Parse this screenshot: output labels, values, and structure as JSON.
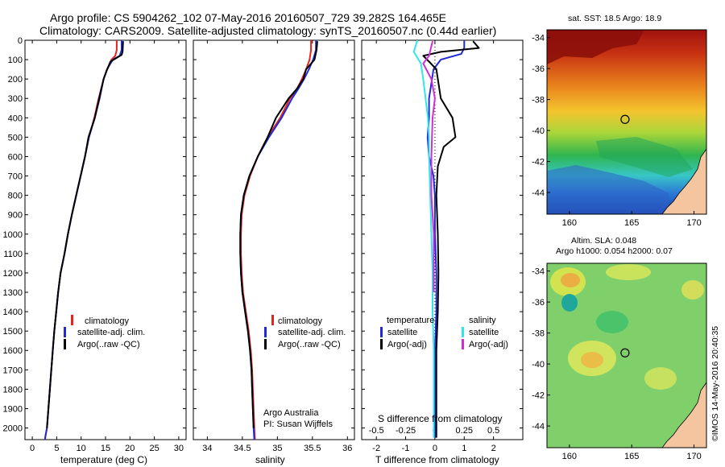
{
  "title": {
    "line1": "Argo profile: CS 5904262_102 07-May-2016 20160507_729 39.282S 164.465E",
    "line2": "Climatology: CARS2009. Satellite-adjusted climatology: synTS_20160507.nc (0.44d earlier)"
  },
  "colors": {
    "climatology": "#e8221d",
    "satellite": "#1f2bd6",
    "argo": "#000000",
    "salinity_satellite": "#2fe6ec",
    "salinity_argo": "#d52bd6"
  },
  "chart_data": [
    {
      "type": "line",
      "panel": "temperature",
      "xlabel": "temperature (deg C)",
      "ylabel": "",
      "xlim": [
        -1.5,
        31.5
      ],
      "ylim": [
        2060,
        0
      ],
      "xticks": [
        0,
        5,
        10,
        15,
        20,
        25,
        30
      ],
      "yticks": [
        0,
        100,
        200,
        300,
        400,
        500,
        600,
        700,
        800,
        900,
        1000,
        1100,
        1200,
        1300,
        1400,
        1500,
        1600,
        1700,
        1800,
        1900,
        2000
      ],
      "legend": [
        "climatology",
        "satellite-adj. clim.",
        "Argo(..raw -QC)"
      ],
      "series": [
        {
          "name": "climatology",
          "color_key": "climatology",
          "x": [
            17.3,
            17.3,
            17.0,
            16.2,
            15.3,
            14.6,
            13.6,
            12.7,
            11.6,
            10.8,
            9.9,
            9.0,
            8.1,
            7.3,
            6.6,
            5.8,
            5.3,
            4.9,
            4.5,
            4.2,
            3.9,
            3.6,
            3.3,
            3.0,
            2.7,
            2.6
          ],
          "y": [
            0,
            50,
            80,
            100,
            150,
            200,
            300,
            400,
            500,
            600,
            700,
            800,
            900,
            1000,
            1100,
            1200,
            1300,
            1400,
            1500,
            1600,
            1700,
            1800,
            1900,
            2000,
            2040,
            2060
          ]
        },
        {
          "name": "satellite-adj. clim.",
          "color_key": "satellite",
          "x": [
            18.3,
            18.3,
            17.9,
            16.5,
            15.3,
            14.6,
            13.8,
            12.8,
            11.6,
            10.8,
            9.9,
            9.0,
            8.1,
            7.3,
            6.6,
            5.8,
            5.3,
            4.9,
            4.5,
            4.2,
            3.9,
            3.6,
            3.3,
            3.0,
            2.7,
            2.6
          ],
          "y": [
            0,
            50,
            80,
            100,
            150,
            200,
            300,
            400,
            500,
            600,
            700,
            800,
            900,
            1000,
            1100,
            1200,
            1300,
            1400,
            1500,
            1600,
            1700,
            1800,
            1900,
            2000,
            2040,
            2060
          ]
        },
        {
          "name": "Argo(..raw -QC)",
          "color_key": "argo",
          "x": [
            18.6,
            18.5,
            18.3,
            16.0,
            15.2,
            14.6,
            13.7,
            12.8,
            11.5,
            10.8,
            9.9,
            9.0,
            8.1,
            7.3,
            6.6,
            5.8,
            5.3,
            4.9,
            4.5,
            4.2,
            3.9,
            3.6,
            3.3,
            3.0
          ],
          "y": [
            5,
            60,
            75,
            110,
            160,
            200,
            300,
            400,
            500,
            600,
            700,
            800,
            900,
            1000,
            1100,
            1200,
            1300,
            1400,
            1500,
            1600,
            1700,
            1800,
            1900,
            2000
          ]
        }
      ]
    },
    {
      "type": "line",
      "panel": "salinity",
      "xlabel": "salinity",
      "xlim": [
        33.8,
        36.1
      ],
      "ylim": [
        2060,
        0
      ],
      "xticks": [
        34,
        34.5,
        35,
        35.5,
        36
      ],
      "xticklabels": [
        "34",
        "34.5",
        "35",
        "35.5",
        "36"
      ],
      "legend": [
        "climatology",
        "satellite-adj. clim.",
        "Argo(..raw -QC)"
      ],
      "annotations": [
        "Argo Australia",
        "PI: Susan Wijffels"
      ],
      "series": [
        {
          "name": "climatology",
          "color_key": "climatology",
          "x": [
            35.48,
            35.48,
            35.46,
            35.41,
            35.35,
            35.28,
            35.18,
            35.04,
            34.86,
            34.72,
            34.61,
            34.53,
            34.49,
            34.48,
            34.48,
            34.49,
            34.51,
            34.55,
            34.59,
            34.62,
            34.64,
            34.65,
            34.66,
            34.67,
            34.68
          ],
          "y": [
            0,
            50,
            100,
            150,
            200,
            250,
            300,
            400,
            500,
            600,
            700,
            800,
            900,
            1000,
            1100,
            1200,
            1300,
            1400,
            1500,
            1600,
            1700,
            1800,
            1900,
            2000,
            2060
          ]
        },
        {
          "name": "satellite-adj. clim.",
          "color_key": "satellite",
          "x": [
            35.55,
            35.55,
            35.51,
            35.45,
            35.38,
            35.3,
            35.21,
            35.06,
            34.88,
            34.72,
            34.6,
            34.52,
            34.48,
            34.47,
            34.47,
            34.48,
            34.5,
            34.54,
            34.58,
            34.61,
            34.63,
            34.64,
            34.65,
            34.66,
            34.67
          ],
          "y": [
            0,
            50,
            100,
            150,
            200,
            250,
            300,
            400,
            500,
            600,
            700,
            800,
            900,
            1000,
            1100,
            1200,
            1300,
            1400,
            1500,
            1600,
            1700,
            1800,
            1900,
            2000,
            2060
          ]
        },
        {
          "name": "Argo(..raw -QC)",
          "color_key": "argo",
          "x": [
            35.57,
            35.56,
            35.53,
            35.41,
            35.37,
            35.28,
            35.16,
            34.98,
            34.86,
            34.72,
            34.6,
            34.52,
            34.48,
            34.47,
            34.47,
            34.48,
            34.5,
            34.54,
            34.58,
            34.61,
            34.63,
            34.64,
            34.65,
            34.66
          ],
          "y": [
            5,
            50,
            100,
            150,
            200,
            250,
            300,
            400,
            500,
            600,
            700,
            800,
            900,
            1000,
            1100,
            1200,
            1300,
            1400,
            1500,
            1600,
            1700,
            1800,
            1900,
            2000
          ]
        }
      ]
    },
    {
      "type": "line",
      "panel": "difference",
      "xlabel": "T difference from climatology",
      "xlabel_top": "S difference from climatology",
      "xlim": [
        -2.5,
        3.0
      ],
      "ylim": [
        2060,
        0
      ],
      "xticks": [
        -2,
        -1,
        0,
        1,
        2
      ],
      "sticks": [
        -0.5,
        -0.25,
        0,
        0.25,
        0.5
      ],
      "sticklabels": [
        "-0.5",
        "-0.25",
        "0",
        "0.25",
        "0.5"
      ],
      "legend_temperature": {
        "title": "temperature",
        "items": [
          "satellite",
          "Argo(-adj)"
        ]
      },
      "legend_salinity": {
        "title": "salinity",
        "items": [
          "satellite",
          "Argo(-adj)"
        ]
      },
      "series": [
        {
          "name": "temperature satellite",
          "color_key": "satellite",
          "x": [
            1.0,
            1.0,
            0.9,
            0.2,
            -0.05,
            -0.1,
            -0.2,
            -0.2,
            -0.25,
            -0.2,
            -0.05,
            0,
            0,
            0.05,
            0.05,
            0,
            0,
            0,
            0
          ],
          "y": [
            0,
            40,
            70,
            100,
            150,
            200,
            300,
            400,
            500,
            600,
            700,
            800,
            1000,
            1200,
            1400,
            1600,
            1800,
            2000,
            2050
          ]
        },
        {
          "name": "temperature Argo(-adj)",
          "color_key": "argo",
          "x": [
            1.3,
            1.5,
            0.2,
            -0.4,
            -0.2,
            0.05,
            0.2,
            0.6,
            0.7,
            0.3,
            0.1,
            0.05,
            0.1,
            0.12,
            0.1,
            0.05,
            0.05,
            0.05,
            0.05
          ],
          "y": [
            5,
            40,
            60,
            80,
            110,
            150,
            300,
            400,
            500,
            550,
            650,
            800,
            1000,
            1200,
            1400,
            1600,
            1800,
            2000,
            2050
          ]
        },
        {
          "name": "salinity satellite",
          "color_key": "salinity_satellite",
          "x": [
            -0.15,
            -0.18,
            -0.12,
            -0.1,
            -0.08,
            -0.06,
            -0.05,
            -0.05,
            -0.04,
            -0.03,
            -0.02,
            -0.02,
            -0.01,
            -0.01,
            -0.01,
            -0.01,
            -0.01
          ],
          "y": [
            0,
            60,
            120,
            200,
            300,
            400,
            500,
            600,
            800,
            1000,
            1200,
            1400,
            1600,
            1800,
            1900,
            2000,
            2050
          ]
        },
        {
          "name": "salinity Argo(-adj)",
          "color_key": "salinity_argo",
          "x": [
            -0.02,
            -0.05,
            -0.1,
            -0.03,
            0.0,
            -0.02,
            -0.03,
            -0.03,
            -0.01,
            -0.01,
            -0.01
          ],
          "y": [
            5,
            80,
            120,
            200,
            300,
            400,
            600,
            800,
            1000,
            1200,
            1300
          ]
        }
      ]
    },
    {
      "type": "heatmap",
      "panel": "sst_map",
      "title": "sat. SST: 18.5 Argo: 18.9",
      "xlim": [
        158.2,
        171
      ],
      "ylim": [
        -45.4,
        -33.5
      ],
      "xticks": [
        160,
        165,
        170
      ],
      "yticks": [
        -34,
        -36,
        -38,
        -40,
        -42,
        -44
      ],
      "marker": {
        "lon": 164.465,
        "lat": -39.282
      }
    },
    {
      "type": "heatmap",
      "panel": "sla_map",
      "title_line1": "Altim. SLA: 0.048",
      "title_line2": "Argo h1000: 0.054 h2000: 0.07",
      "xlim": [
        158.2,
        171
      ],
      "ylim": [
        -45.4,
        -33.5
      ],
      "xticks": [
        160,
        165,
        170
      ],
      "yticks": [
        -34,
        -36,
        -38,
        -40,
        -42,
        -44
      ],
      "marker": {
        "lon": 164.465,
        "lat": -39.282
      }
    }
  ],
  "side_label": "©IMOS 14-May-2016 20:40:35"
}
